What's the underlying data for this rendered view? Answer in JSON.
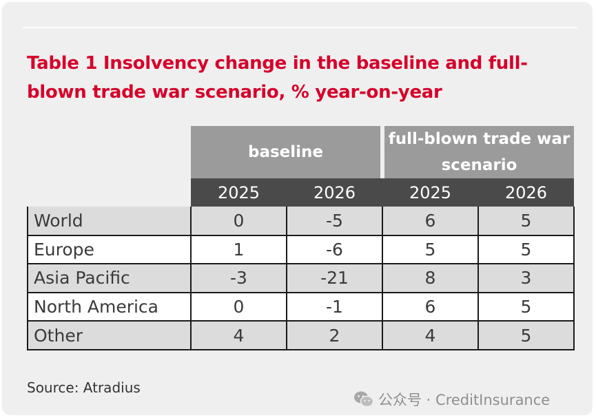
{
  "title": "Table 1 Insolvency change in the baseline and full-blown trade war scenario, % year-on-year",
  "table": {
    "group_headers": [
      "baseline",
      "full-blown trade war scenario"
    ],
    "year_headers": [
      "2025",
      "2026",
      "2025",
      "2026"
    ],
    "rows": [
      {
        "label": "World",
        "values": [
          "0",
          "-5",
          "6",
          "5"
        ]
      },
      {
        "label": "Europe",
        "values": [
          "1",
          "-6",
          "5",
          "5"
        ]
      },
      {
        "label": "Asia Pacific",
        "values": [
          "-3",
          "-21",
          "8",
          "3"
        ]
      },
      {
        "label": "North America",
        "values": [
          "0",
          "-1",
          "6",
          "5"
        ]
      },
      {
        "label": "Other",
        "values": [
          "4",
          "2",
          "4",
          "5"
        ]
      }
    ]
  },
  "source": "Source: Atradius",
  "watermark": {
    "text": "公众号 · CreditInsurance",
    "icon": "wechat-icon"
  },
  "colors": {
    "title": "#d6002a",
    "group_header_bg": "#9b9b9b",
    "year_header_bg": "#4a4a4a",
    "shaded_row_bg": "#dcdcdc",
    "card_bg": "#efefef"
  }
}
